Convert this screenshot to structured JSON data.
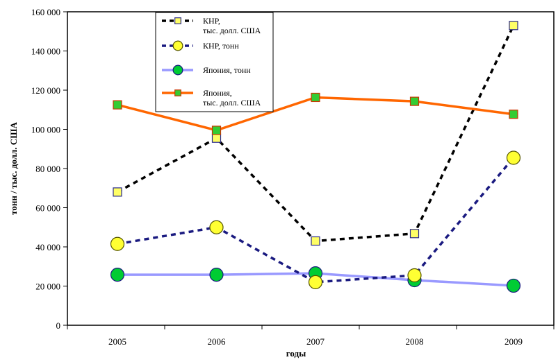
{
  "chart_data": {
    "type": "line",
    "x": [
      2005,
      2006,
      2007,
      2008,
      2009
    ],
    "xlabel": "годы",
    "ylabel": "тонн / тыс. долл. США",
    "ylim": [
      0,
      160000
    ],
    "yticks": [
      0,
      20000,
      40000,
      60000,
      80000,
      100000,
      120000,
      140000,
      160000
    ],
    "ytick_labels": [
      "0",
      "20 000",
      "40 000",
      "60 000",
      "80 000",
      "100 000",
      "120 000",
      "140 000",
      "160 000"
    ],
    "xtick_labels": [
      "2005",
      "2006",
      "2007",
      "2008",
      "2009"
    ],
    "grid": false,
    "legend_position": "top-center",
    "series": [
      {
        "name_lines": [
          "КНР,",
          "тыс. долл. США"
        ],
        "values": [
          68000,
          95500,
          43000,
          46800,
          153000
        ],
        "line_color": "#000000",
        "line_style": "dashed",
        "marker": "square",
        "marker_fill": "#ffff66",
        "marker_stroke": "#2a2a8a"
      },
      {
        "name_lines": [
          "КНР, тонн"
        ],
        "values": [
          41500,
          50000,
          22000,
          25500,
          85500
        ],
        "line_color": "#1a1a80",
        "line_style": "dashed",
        "marker": "circle",
        "marker_fill": "#ffff33",
        "marker_stroke": "#555500"
      },
      {
        "name_lines": [
          "Япония, тонн"
        ],
        "values": [
          25800,
          25800,
          26500,
          23000,
          20200
        ],
        "line_color": "#9999ff",
        "line_style": "solid",
        "marker": "circle",
        "marker_fill": "#00cc33",
        "marker_stroke": "#1a1a80"
      },
      {
        "name_lines": [
          "Япония,",
          "тыс. долл. США"
        ],
        "values": [
          112500,
          99500,
          116300,
          114300,
          107700
        ],
        "line_color": "#ff6600",
        "line_style": "solid",
        "marker": "square",
        "marker_fill": "#33cc33",
        "marker_stroke": "#cc3300"
      }
    ]
  }
}
